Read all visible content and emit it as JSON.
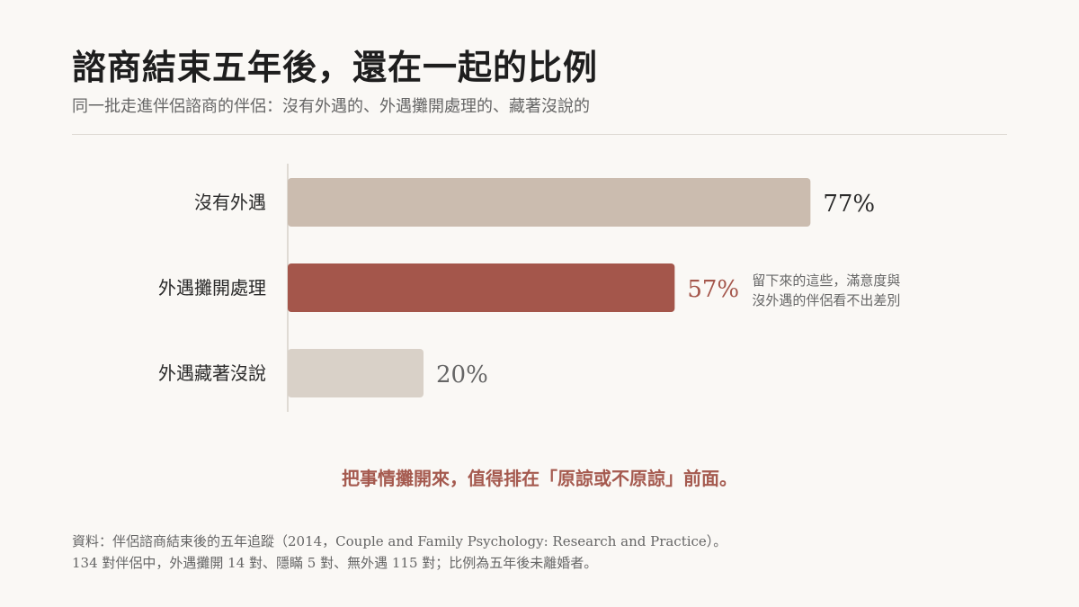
{
  "header": {
    "title": "諮商結束五年後，還在一起的比例",
    "subtitle": "同一批走進伴侶諮商的伴侶：沒有外遇的、外遇攤開處理的、藏著沒說的"
  },
  "chart_data": {
    "type": "bar",
    "orientation": "horizontal",
    "categories": [
      "沒有外遇",
      "外遇攤開處理",
      "外遇藏著沒說"
    ],
    "values": [
      77,
      57,
      20
    ],
    "value_labels": [
      "77%",
      "57%",
      "20%"
    ],
    "unit": "%",
    "xlim": [
      0,
      100
    ],
    "colors": [
      "#cbbcaf",
      "#a4564b",
      "#d9d1c8"
    ],
    "label_colors": [
      "#2a2a2a",
      "#a4564b",
      "#666666"
    ],
    "annotation": {
      "category": "外遇攤開處理",
      "lines": [
        "留下來的這些，滿意度與",
        "沒外遇的伴侶看不出差別"
      ]
    }
  },
  "takeaway": "把事情攤開來，值得排在「原諒或不原諒」前面。",
  "source": {
    "line1": "資料：伴侶諮商結束後的五年追蹤（2014，Couple and Family Psychology: Research and Practice）。",
    "line2": "134 對伴侶中，外遇攤開 14 對、隱瞞 5 對、無外遇 115 對；比例為五年後未離婚者。"
  }
}
